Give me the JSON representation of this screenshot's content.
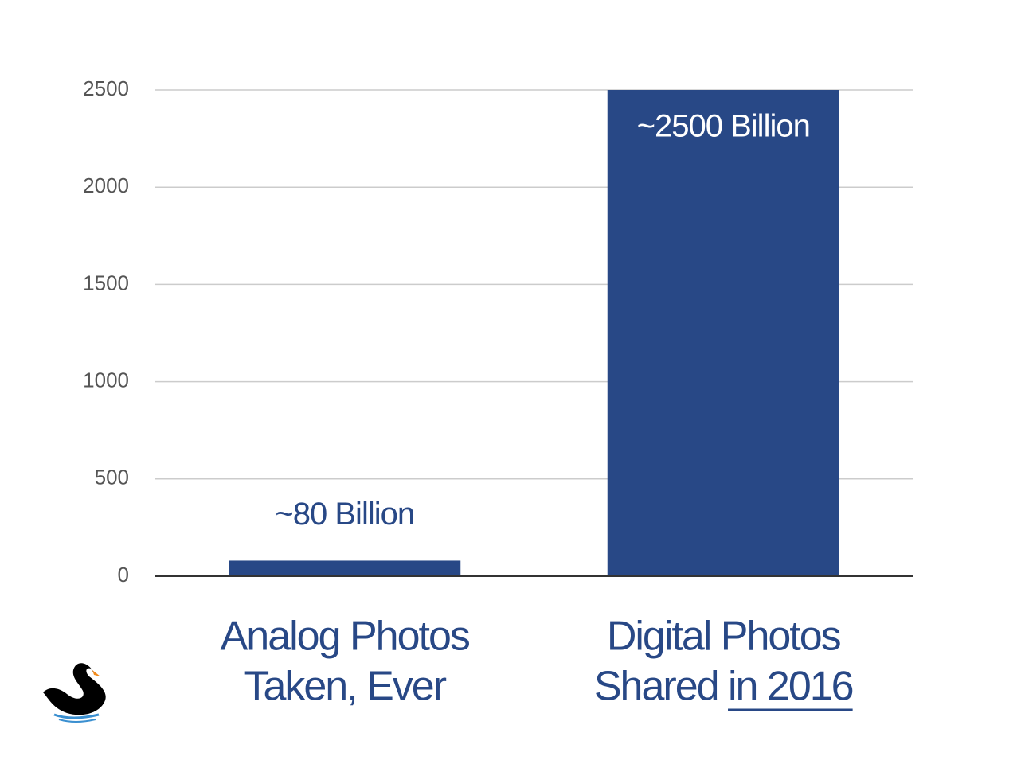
{
  "chart_data": {
    "type": "bar",
    "categories": [
      [
        "Analog Photos",
        "Taken, Ever"
      ],
      [
        "Digital Photos",
        "Shared in 2016"
      ]
    ],
    "emphasis": "in 2016",
    "values": [
      80,
      2500
    ],
    "value_labels": [
      "~80 Billion",
      "~2500 Billion"
    ],
    "color": "#284886",
    "ylim": [
      0,
      2500
    ],
    "yticks": [
      0,
      500,
      1000,
      1500,
      2000,
      2500
    ],
    "grid": true
  }
}
